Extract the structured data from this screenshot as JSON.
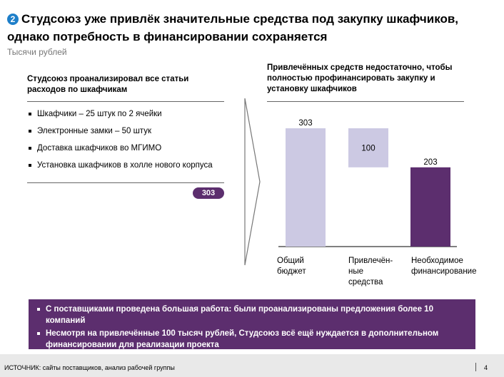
{
  "header": {
    "badge": "2",
    "title": "Студсоюз уже привлёк значительные средства под закупку шкафчиков, однако потребность в финансировании сохраняется",
    "subtitle": "Тысячи рублей"
  },
  "left_panel": {
    "heading": "Студсоюз проанализировал все статьи расходов по шкафчикам",
    "items": [
      "Шкафчики – 25 штук по 2 ячейки",
      "Электронные замки – 50 штук",
      "Доставка шкафчиков во МГИМО",
      "Установка шкафчиков в холле нового корпуса"
    ],
    "total": "303"
  },
  "right_panel": {
    "heading": "Привлечённых средств недостаточно, чтобы полностью профинансировать закупку и установку шкафчиков"
  },
  "chart_data": {
    "type": "bar",
    "subtype": "waterfall",
    "categories": [
      "Общий бюджет",
      "Привлечён-ные средства",
      "Необходимое финансирование"
    ],
    "category_labels": [
      [
        "Общий",
        "бюджет"
      ],
      [
        "Привлечён-",
        "ные",
        "средства"
      ],
      [
        "Необходимое",
        "финансирование"
      ]
    ],
    "values": [
      303,
      100,
      203
    ],
    "value_labels": [
      "303",
      "100",
      "203"
    ],
    "colors": [
      "#ccc9e3",
      "#ccc9e3",
      "#5c2e6e"
    ],
    "ylim": [
      0,
      303
    ]
  },
  "callout": {
    "items": [
      "С поставщиками проведена большая работа: были проанализированы предложения более 10 компаний",
      "Несмотря на привлечённые 100 тысяч рублей, Студсоюз всё ещё нуждается в дополнительном финансировании для реализации проекта"
    ]
  },
  "footer": {
    "source": "ИСТОЧНИК: сайты поставщиков, анализ рабочей группы",
    "page": "4"
  }
}
